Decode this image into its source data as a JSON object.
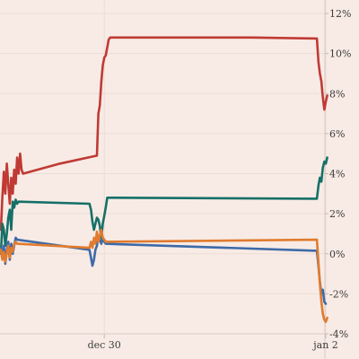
{
  "chart_data": {
    "type": "line",
    "title": "",
    "xlabel": "",
    "ylabel": "",
    "x_unit": "day (Dec 2023 - Jan 2024)",
    "xlim": [
      28.6,
      33.0
    ],
    "ylim": [
      -4,
      12
    ],
    "x_ticks": [
      {
        "x": 30.0,
        "label": "dec 30"
      },
      {
        "x": 33.0,
        "label": "jan 2"
      }
    ],
    "y_ticks": [
      {
        "y": 12,
        "label": "12%"
      },
      {
        "y": 10,
        "label": "10%"
      },
      {
        "y": 8,
        "label": "8%"
      },
      {
        "y": 6,
        "label": "6%"
      },
      {
        "y": 4,
        "label": "4%"
      },
      {
        "y": 2,
        "label": "2%"
      },
      {
        "y": 0,
        "label": "0%"
      },
      {
        "y": -2,
        "label": "-2%"
      },
      {
        "y": -4,
        "label": "-4%"
      }
    ],
    "grid": true,
    "legend": "none",
    "series": [
      {
        "color": "#c03a35",
        "points": [
          [
            28.6,
            1.2
          ],
          [
            28.62,
            2.8
          ],
          [
            28.64,
            4.1
          ],
          [
            28.66,
            3.0
          ],
          [
            28.68,
            4.5
          ],
          [
            28.7,
            3.5
          ],
          [
            28.72,
            2.5
          ],
          [
            28.74,
            3.8
          ],
          [
            28.76,
            3.0
          ],
          [
            28.78,
            4.2
          ],
          [
            28.8,
            3.5
          ],
          [
            28.82,
            4.8
          ],
          [
            28.84,
            4.0
          ],
          [
            28.86,
            5.0
          ],
          [
            28.88,
            4.2
          ],
          [
            28.9,
            4.0
          ],
          [
            29.4,
            4.5
          ],
          [
            29.9,
            4.9
          ],
          [
            29.92,
            7.0
          ],
          [
            29.94,
            7.4
          ],
          [
            29.96,
            8.6
          ],
          [
            29.98,
            9.4
          ],
          [
            30.0,
            9.8
          ],
          [
            30.02,
            9.9
          ],
          [
            30.04,
            10.3
          ],
          [
            30.06,
            10.7
          ],
          [
            30.08,
            10.8
          ],
          [
            32.0,
            10.8
          ],
          [
            32.88,
            10.75
          ],
          [
            32.9,
            9.6
          ],
          [
            32.92,
            9.0
          ],
          [
            32.94,
            8.6
          ],
          [
            32.96,
            7.8
          ],
          [
            32.98,
            7.2
          ],
          [
            33.0,
            7.6
          ],
          [
            33.02,
            7.9
          ]
        ]
      },
      {
        "color": "#167068",
        "points": [
          [
            28.6,
            0.0
          ],
          [
            28.62,
            1.5
          ],
          [
            28.64,
            1.2
          ],
          [
            28.66,
            0.4
          ],
          [
            28.68,
            1.0
          ],
          [
            28.7,
            1.8
          ],
          [
            28.72,
            2.2
          ],
          [
            28.74,
            1.2
          ],
          [
            28.76,
            2.6
          ],
          [
            28.78,
            2.3
          ],
          [
            28.8,
            2.7
          ],
          [
            28.82,
            2.5
          ],
          [
            28.84,
            2.6
          ],
          [
            29.8,
            2.5
          ],
          [
            29.82,
            2.2
          ],
          [
            29.84,
            1.6
          ],
          [
            29.86,
            1.2
          ],
          [
            29.88,
            1.5
          ],
          [
            29.9,
            1.8
          ],
          [
            29.92,
            1.7
          ],
          [
            29.94,
            1.4
          ],
          [
            29.96,
            0.8
          ],
          [
            29.98,
            1.5
          ],
          [
            30.0,
            1.9
          ],
          [
            30.02,
            2.3
          ],
          [
            30.04,
            2.8
          ],
          [
            32.88,
            2.75
          ],
          [
            32.9,
            3.4
          ],
          [
            32.92,
            3.8
          ],
          [
            32.94,
            3.6
          ],
          [
            32.96,
            4.3
          ],
          [
            32.98,
            4.6
          ],
          [
            33.0,
            4.5
          ],
          [
            33.02,
            4.8
          ]
        ]
      },
      {
        "color": "#3d6aa8",
        "points": [
          [
            28.6,
            0.3
          ],
          [
            28.62,
            -0.2
          ],
          [
            28.64,
            0.4
          ],
          [
            28.66,
            -0.5
          ],
          [
            28.68,
            0.2
          ],
          [
            28.7,
            0.6
          ],
          [
            28.72,
            -0.3
          ],
          [
            28.74,
            0.5
          ],
          [
            28.76,
            0.0
          ],
          [
            28.78,
            0.4
          ],
          [
            28.8,
            0.8
          ],
          [
            28.82,
            0.7
          ],
          [
            29.8,
            0.2
          ],
          [
            29.82,
            -0.2
          ],
          [
            29.84,
            -0.6
          ],
          [
            29.86,
            -0.3
          ],
          [
            29.88,
            0.2
          ],
          [
            29.9,
            0.4
          ],
          [
            29.92,
            0.9
          ],
          [
            29.94,
            0.7
          ],
          [
            29.96,
            0.5
          ],
          [
            29.98,
            0.8
          ],
          [
            30.0,
            0.6
          ],
          [
            30.02,
            0.5
          ],
          [
            32.88,
            0.15
          ],
          [
            32.9,
            -0.6
          ],
          [
            32.92,
            -1.4
          ],
          [
            32.94,
            -2.0
          ],
          [
            32.96,
            -1.8
          ],
          [
            32.98,
            -2.4
          ],
          [
            33.0,
            -2.5
          ]
        ]
      },
      {
        "color": "#e07b2f",
        "points": [
          [
            28.6,
            0.2
          ],
          [
            28.62,
            -0.3
          ],
          [
            28.64,
            0.1
          ],
          [
            28.66,
            -0.4
          ],
          [
            28.68,
            0.0
          ],
          [
            28.7,
            0.4
          ],
          [
            28.72,
            -0.2
          ],
          [
            28.74,
            0.3
          ],
          [
            28.76,
            0.1
          ],
          [
            28.78,
            0.5
          ],
          [
            28.8,
            0.6
          ],
          [
            28.82,
            0.5
          ],
          [
            29.8,
            0.3
          ],
          [
            29.82,
            0.6
          ],
          [
            29.84,
            0.3
          ],
          [
            29.86,
            0.8
          ],
          [
            29.88,
            0.5
          ],
          [
            29.9,
            1.1
          ],
          [
            29.92,
            0.6
          ],
          [
            29.94,
            0.9
          ],
          [
            29.96,
            1.2
          ],
          [
            29.98,
            0.8
          ],
          [
            30.0,
            0.7
          ],
          [
            30.02,
            0.6
          ],
          [
            32.88,
            0.7
          ],
          [
            32.9,
            -0.4
          ],
          [
            32.92,
            -1.5
          ],
          [
            32.94,
            -2.4
          ],
          [
            32.96,
            -3.0
          ],
          [
            32.98,
            -3.3
          ],
          [
            33.0,
            -3.4
          ],
          [
            33.02,
            -3.2
          ]
        ]
      }
    ]
  }
}
